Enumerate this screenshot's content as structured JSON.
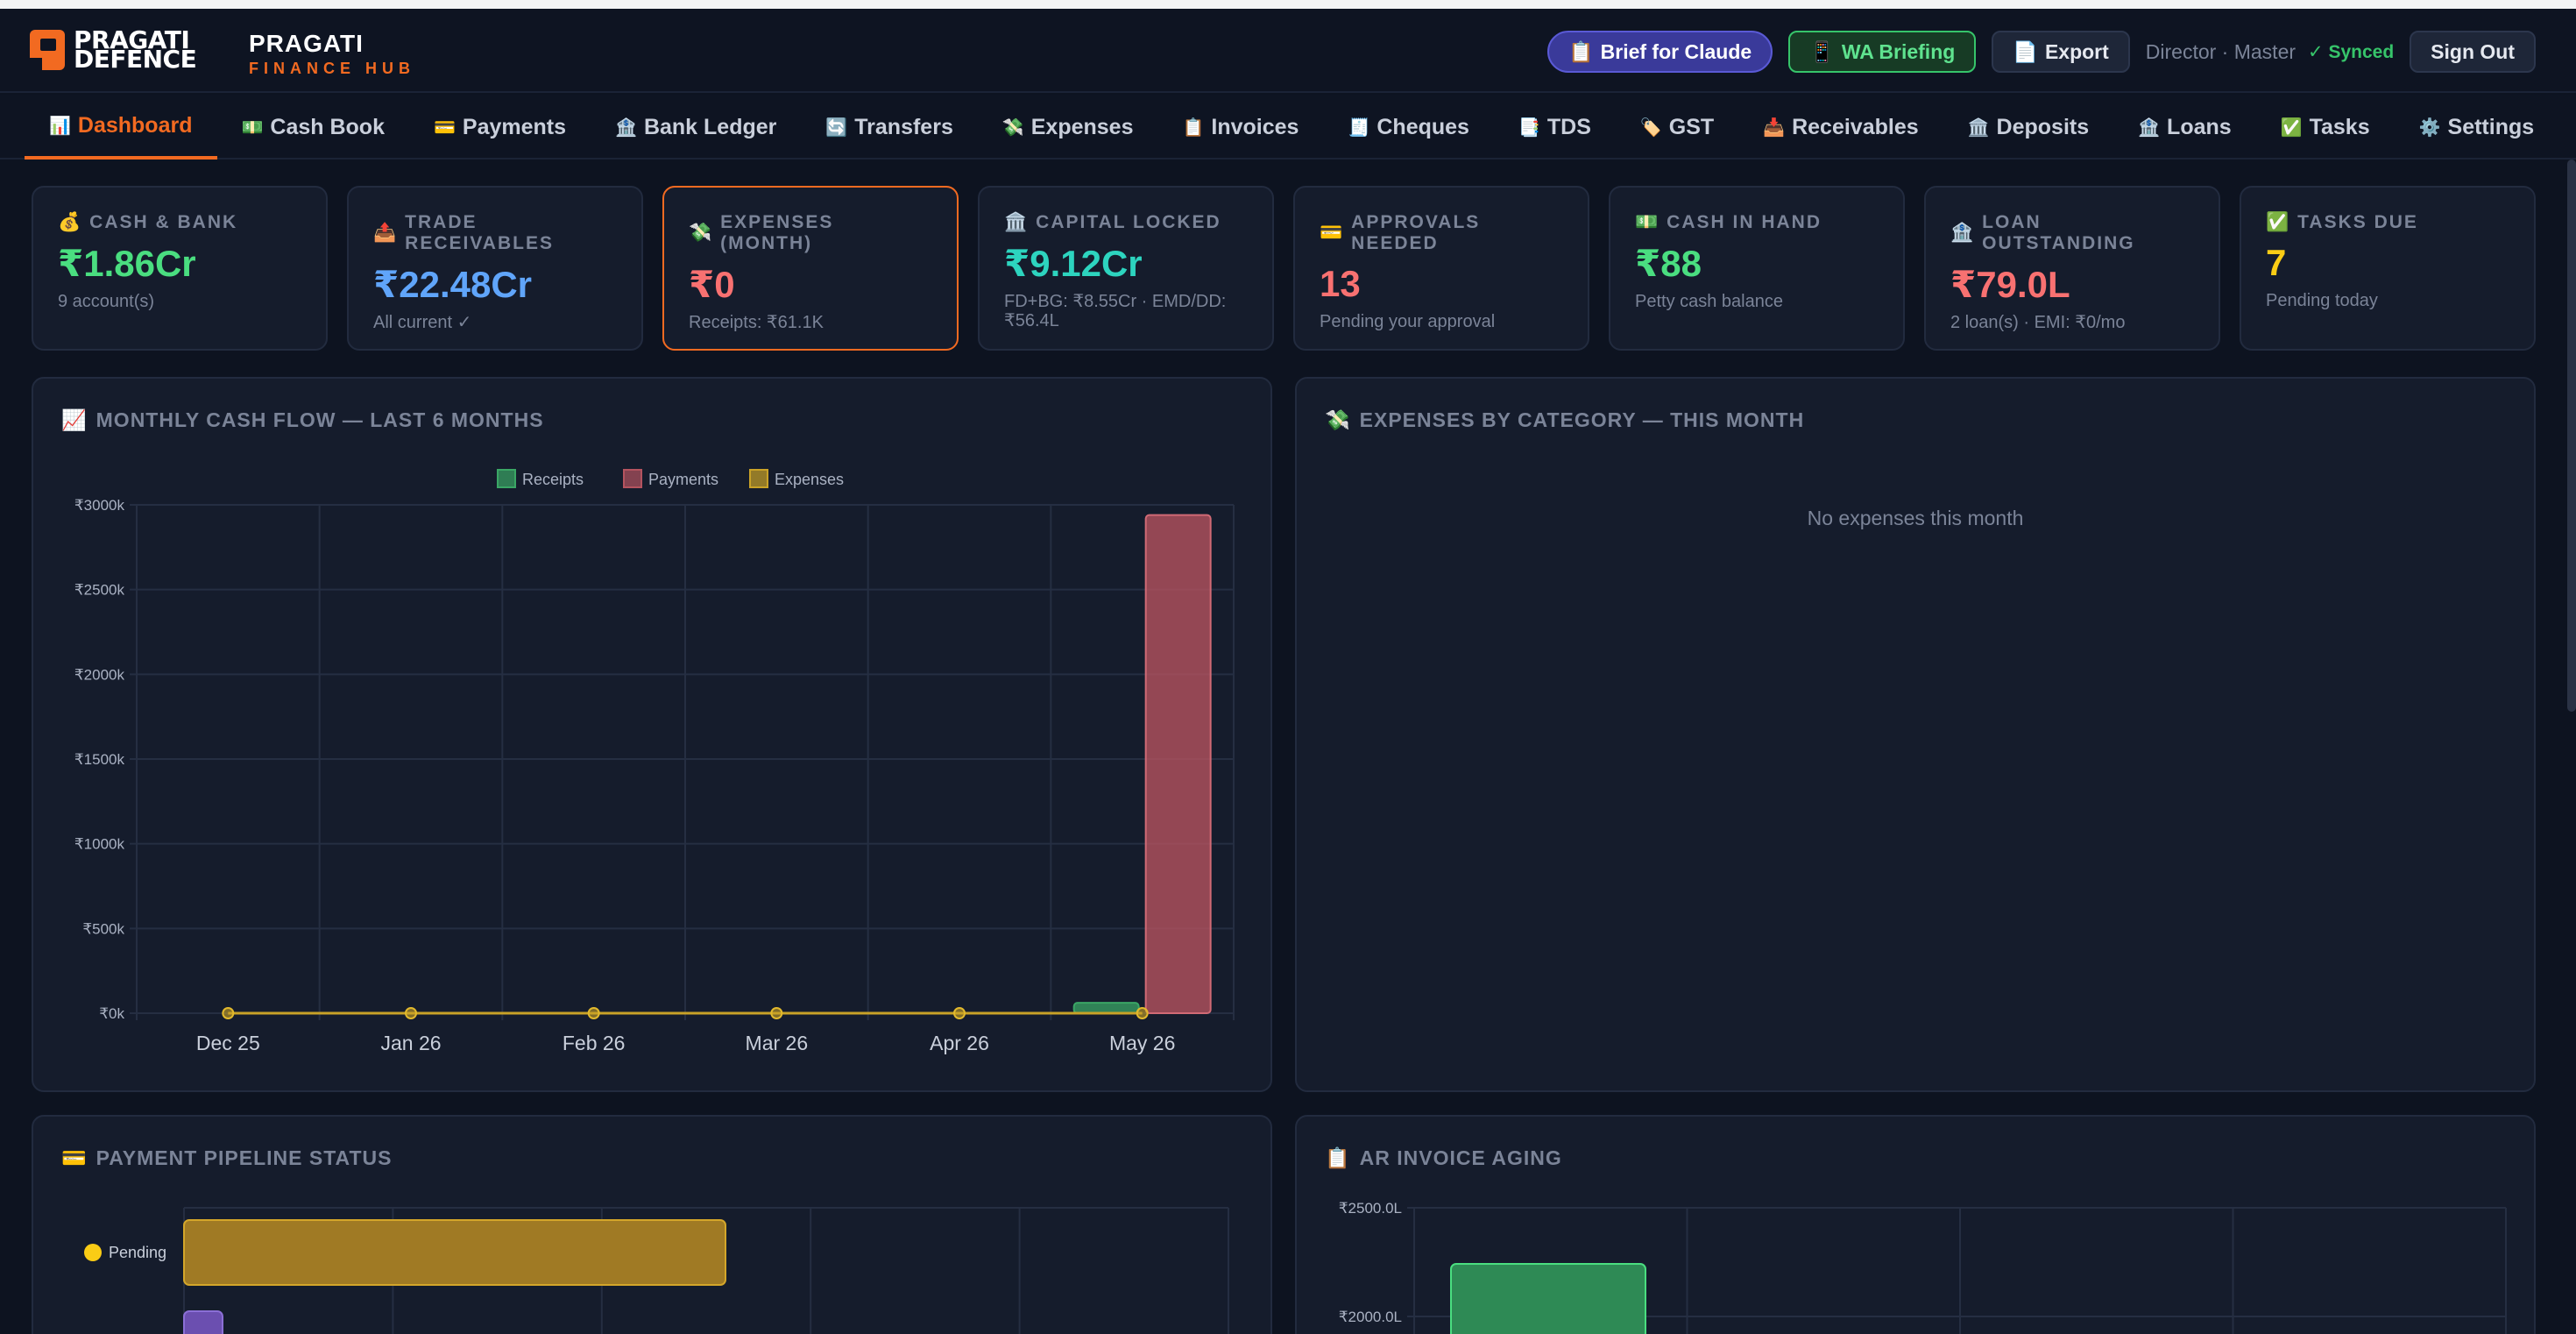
{
  "header": {
    "logo_line1": "PRAGATI",
    "logo_line2": "DEFENCE",
    "brand_name": "PRAGATI",
    "brand_sub": "FINANCE HUB",
    "brief_label": "Brief for Claude",
    "wa_label": "WA Briefing",
    "export_label": "Export",
    "user": "Director · Master",
    "synced": "✓ Synced",
    "signout_label": "Sign Out"
  },
  "nav": {
    "tabs": [
      {
        "icon": "📊",
        "label": "Dashboard"
      },
      {
        "icon": "💵",
        "label": "Cash Book"
      },
      {
        "icon": "💳",
        "label": "Payments"
      },
      {
        "icon": "🏦",
        "label": "Bank Ledger"
      },
      {
        "icon": "🔄",
        "label": "Transfers"
      },
      {
        "icon": "💸",
        "label": "Expenses"
      },
      {
        "icon": "📋",
        "label": "Invoices"
      },
      {
        "icon": "🧾",
        "label": "Cheques"
      },
      {
        "icon": "📑",
        "label": "TDS"
      },
      {
        "icon": "🏷️",
        "label": "GST"
      },
      {
        "icon": "📥",
        "label": "Receivables"
      },
      {
        "icon": "🏛️",
        "label": "Deposits"
      },
      {
        "icon": "🏦",
        "label": "Loans"
      },
      {
        "icon": "✅",
        "label": "Tasks"
      },
      {
        "icon": "⚙️",
        "label": "Settings"
      }
    ]
  },
  "cards": [
    {
      "icon": "💰",
      "label": "CASH & BANK",
      "value": "₹1.86Cr",
      "sub": "9 account(s)"
    },
    {
      "icon": "📤",
      "label": "TRADE RECEIVABLES",
      "value": "₹22.48Cr",
      "sub": "All current ✓"
    },
    {
      "icon": "💸",
      "label": "EXPENSES (MONTH)",
      "value": "₹0",
      "sub": "Receipts: ₹61.1K"
    },
    {
      "icon": "🏛️",
      "label": "CAPITAL LOCKED",
      "value": "₹9.12Cr",
      "sub": "FD+BG: ₹8.55Cr · EMD/DD: ₹56.4L"
    },
    {
      "icon": "💳",
      "label": "APPROVALS NEEDED",
      "value": "13",
      "sub": "Pending your approval"
    },
    {
      "icon": "💵",
      "label": "CASH IN HAND",
      "value": "₹88",
      "sub": "Petty cash balance"
    },
    {
      "icon": "🏦",
      "label": "LOAN OUTSTANDING",
      "value": "₹79.0L",
      "sub": "2 loan(s) · EMI: ₹0/mo"
    },
    {
      "icon": "✅",
      "label": "TASKS DUE",
      "value": "7",
      "sub": "Pending today"
    }
  ],
  "panels": {
    "cashflow_title": "MONTHLY CASH FLOW — LAST 6 MONTHS",
    "expenses_title": "EXPENSES BY CATEGORY — THIS MONTH",
    "expenses_empty": "No expenses this month",
    "pipeline_title": "PAYMENT PIPELINE STATUS",
    "aging_title": "AR INVOICE AGING"
  },
  "colors": {
    "accent": "#f26a21",
    "receipts": "#3aa665",
    "payments": "#b4535f",
    "expenses": "#c9a227"
  },
  "chart_data": [
    {
      "type": "bar",
      "title": "MONTHLY CASH FLOW — LAST 6 MONTHS",
      "categories": [
        "Dec 25",
        "Jan 26",
        "Feb 26",
        "Mar 26",
        "Apr 26",
        "May 26"
      ],
      "series": [
        {
          "name": "Receipts",
          "values": [
            0,
            0,
            0,
            0,
            0,
            61.1
          ]
        },
        {
          "name": "Payments",
          "values": [
            0,
            0,
            0,
            0,
            0,
            2940
          ]
        },
        {
          "name": "Expenses",
          "values": [
            0,
            0,
            0,
            0,
            0,
            0
          ]
        }
      ],
      "ylim": [
        0,
        3000
      ],
      "yticks": [
        "₹0k",
        "₹500k",
        "₹1000k",
        "₹1500k",
        "₹2000k",
        "₹2500k",
        "₹3000k"
      ],
      "legend": "top-center",
      "grid": true
    },
    {
      "type": "bar",
      "title": "PAYMENT PIPELINE STATUS",
      "orientation": "horizontal",
      "categories": [
        "Pending"
      ],
      "values": [
        13
      ]
    },
    {
      "type": "bar",
      "title": "AR INVOICE AGING",
      "yticks": [
        "₹2000.0L",
        "₹2500.0L"
      ],
      "ylim": [
        0,
        2500
      ]
    }
  ]
}
